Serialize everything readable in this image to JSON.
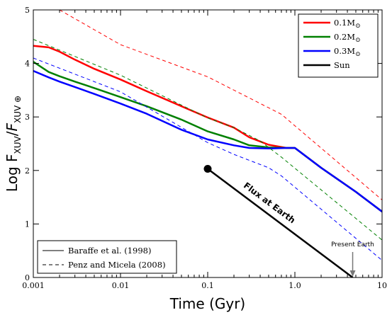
{
  "chart_data": {
    "type": "line",
    "xlabel": "Time (Gyr)",
    "ylabel_main": "Log F",
    "ylabel_sub": "XUV",
    "ylabel_den": "F",
    "ylabel_den_sub": "XUV ⊕",
    "xscale": "log",
    "xlim": [
      0.001,
      10
    ],
    "ylim": [
      0,
      5
    ],
    "x_ticks": [
      {
        "value": 0.001,
        "label": "0.001"
      },
      {
        "value": 0.01,
        "label": "0.01"
      },
      {
        "value": 0.1,
        "label": "0.1"
      },
      {
        "value": 1,
        "label": "1.0"
      },
      {
        "value": 10,
        "label": "10"
      }
    ],
    "y_ticks": [
      {
        "value": 0,
        "label": "0"
      },
      {
        "value": 1,
        "label": "1"
      },
      {
        "value": 2,
        "label": "2"
      },
      {
        "value": 3,
        "label": "3"
      },
      {
        "value": 4,
        "label": "4"
      },
      {
        "value": 5,
        "label": "5"
      }
    ],
    "series": [
      {
        "name": "0.1M",
        "name_sub": "⊙",
        "color": "#ff0000",
        "style": "solid",
        "points": [
          [
            0.001,
            4.33
          ],
          [
            0.0015,
            4.3
          ],
          [
            0.002,
            4.22
          ],
          [
            0.003,
            4.07
          ],
          [
            0.005,
            3.9
          ],
          [
            0.01,
            3.7
          ],
          [
            0.02,
            3.48
          ],
          [
            0.05,
            3.2
          ],
          [
            0.1,
            2.99
          ],
          [
            0.2,
            2.8
          ],
          [
            0.3,
            2.62
          ],
          [
            0.5,
            2.48
          ],
          [
            0.8,
            2.42
          ],
          [
            1.0,
            2.42
          ],
          [
            2,
            2.05
          ],
          [
            5,
            1.6
          ],
          [
            10,
            1.23
          ]
        ]
      },
      {
        "name": "0.2M",
        "name_sub": "⊙",
        "color": "#008000",
        "style": "solid",
        "points": [
          [
            0.001,
            4.03
          ],
          [
            0.0015,
            3.84
          ],
          [
            0.002,
            3.76
          ],
          [
            0.003,
            3.66
          ],
          [
            0.005,
            3.54
          ],
          [
            0.01,
            3.37
          ],
          [
            0.02,
            3.2
          ],
          [
            0.05,
            2.95
          ],
          [
            0.1,
            2.73
          ],
          [
            0.2,
            2.58
          ],
          [
            0.3,
            2.47
          ],
          [
            0.5,
            2.43
          ],
          [
            0.8,
            2.42
          ],
          [
            1.0,
            2.42
          ],
          [
            2,
            2.05
          ],
          [
            5,
            1.6
          ],
          [
            10,
            1.23
          ]
        ]
      },
      {
        "name": "0.3M",
        "name_sub": "⊙",
        "color": "#0000ff",
        "style": "solid",
        "points": [
          [
            0.001,
            3.86
          ],
          [
            0.0015,
            3.74
          ],
          [
            0.002,
            3.66
          ],
          [
            0.003,
            3.56
          ],
          [
            0.005,
            3.43
          ],
          [
            0.01,
            3.25
          ],
          [
            0.02,
            3.06
          ],
          [
            0.05,
            2.76
          ],
          [
            0.1,
            2.58
          ],
          [
            0.2,
            2.47
          ],
          [
            0.3,
            2.42
          ],
          [
            0.5,
            2.41
          ],
          [
            0.8,
            2.42
          ],
          [
            1.0,
            2.42
          ],
          [
            2,
            2.05
          ],
          [
            5,
            1.6
          ],
          [
            10,
            1.23
          ]
        ]
      },
      {
        "name": "Sun",
        "name_sub": "",
        "color": "#000000",
        "style": "solid",
        "points": [
          [
            0.1,
            2.03
          ],
          [
            4.6,
            0
          ]
        ]
      },
      {
        "name": "",
        "color": "#ff0000",
        "style": "dashed",
        "points": [
          [
            0.002,
            5.0
          ],
          [
            0.01,
            4.35
          ],
          [
            0.1,
            3.75
          ],
          [
            0.7,
            3.05
          ],
          [
            10,
            1.45
          ]
        ]
      },
      {
        "name": "",
        "color": "#008000",
        "style": "dashed",
        "points": [
          [
            0.001,
            4.45
          ],
          [
            0.01,
            3.78
          ],
          [
            0.1,
            2.98
          ],
          [
            0.2,
            2.8
          ],
          [
            0.4,
            2.55
          ],
          [
            0.7,
            2.25
          ],
          [
            10,
            0.7
          ]
        ]
      },
      {
        "name": "",
        "color": "#0000ff",
        "style": "dashed",
        "points": [
          [
            0.001,
            4.1
          ],
          [
            0.01,
            3.47
          ],
          [
            0.1,
            2.52
          ],
          [
            0.2,
            2.3
          ],
          [
            0.5,
            2.05
          ],
          [
            0.7,
            1.9
          ],
          [
            10,
            0.32
          ]
        ]
      }
    ],
    "marker": {
      "x": 0.1,
      "y": 2.03,
      "color": "#000000"
    },
    "legend_top_right": [
      {
        "label": "0.1M",
        "sub": "⊙",
        "color": "#ff0000"
      },
      {
        "label": "0.2M",
        "sub": "⊙",
        "color": "#008000"
      },
      {
        "label": "0.3M",
        "sub": "⊙",
        "color": "#0000ff"
      },
      {
        "label": "Sun",
        "sub": "",
        "color": "#000000"
      }
    ],
    "legend_bottom_left": [
      {
        "label": "Baraffe et al. (1998)",
        "style": "solid"
      },
      {
        "label": "Penz and Micela (2008)",
        "style": "dashed"
      }
    ],
    "annotations": {
      "flux_label": "Flux at Earth",
      "present_earth": "Present Earth",
      "present_earth_x": 4.6
    },
    "grid": false
  }
}
